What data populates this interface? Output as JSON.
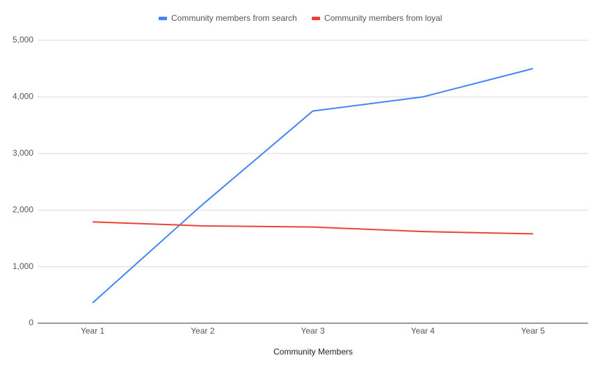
{
  "chart_data": {
    "type": "line",
    "x_label": "Community Members",
    "categories": [
      "Year 1",
      "Year 2",
      "Year 3",
      "Year 4",
      "Year 5"
    ],
    "series": [
      {
        "name": "Community members from search",
        "color": "#4285f4",
        "values": [
          360,
          2100,
          3750,
          4000,
          4500
        ]
      },
      {
        "name": "Community members from loyal",
        "color": "#ea4335",
        "values": [
          1790,
          1720,
          1700,
          1620,
          1580
        ]
      }
    ],
    "ylim": [
      0,
      5000
    ],
    "yticks": [
      0,
      {
        "value": 1000,
        "label": "1,000"
      },
      {
        "value": 2000,
        "label": "2,000"
      },
      {
        "value": 3000,
        "label": "3,000"
      },
      {
        "value": 4000,
        "label": "4,000"
      },
      {
        "value": 5000,
        "label": "5,000"
      }
    ],
    "grid": true,
    "legend": "top"
  }
}
